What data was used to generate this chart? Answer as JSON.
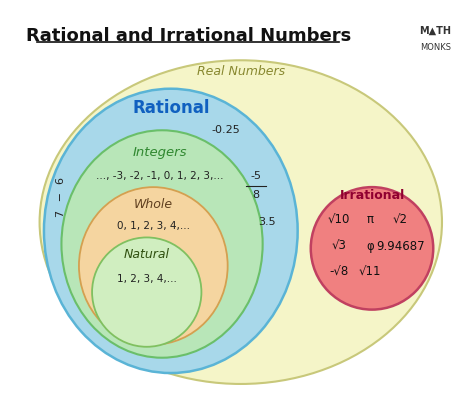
{
  "title": "Rational and Irrational Numbers",
  "bg_color": "#ffffff",
  "real_color": "#f5f5c8",
  "real_edge": "#c8c87a",
  "rational_color": "#a8d8ea",
  "rational_edge": "#5ab4d6",
  "integers_color": "#b8e6b8",
  "integers_edge": "#6abf6a",
  "whole_color": "#f5d5a0",
  "whole_edge": "#d4a050",
  "natural_color": "#d0eec0",
  "natural_edge": "#80c060",
  "irrational_color": "#f08080",
  "irrational_edge": "#c04060",
  "real_label": "Real Numbers",
  "real_label_color": "#888830",
  "rational_label": "Rational",
  "rational_label_color": "#1060c0",
  "integers_label": "Integers",
  "integers_label_color": "#308830",
  "integers_examples": "..., -3, -2, -1, 0, 1, 2, 3,...",
  "whole_label": "Whole",
  "whole_label_color": "#604020",
  "whole_examples": "0, 1, 2, 3, 4,...",
  "natural_label": "Natural",
  "natural_label_color": "#305010",
  "natural_examples": "1, 2, 3, 4,...",
  "irrational_label": "Irrational",
  "irrational_label_color": "#900030",
  "irrational_examples": [
    [
      "√10",
      "π",
      "√2"
    ],
    [
      "√3",
      "φ",
      "9.94687"
    ],
    [
      "-√8",
      "√11",
      ""
    ]
  ],
  "rational_examples_left": "6\n7",
  "rational_examples_right1": "-0.25",
  "rational_examples_right2": "-5\n8",
  "rational_examples_right3": "3.5",
  "mathmonks_text": "M▲TH\nMONKS",
  "mathmonks_color": "#333333",
  "mathmonks_triangle_color": "#e05010"
}
